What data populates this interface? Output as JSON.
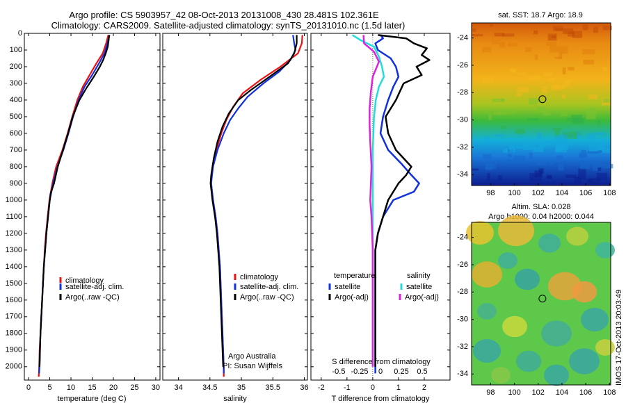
{
  "title_line1": "Argo profile: CS 5903957_42 08-Oct-2013 20131008_430 28.481S 102.361E",
  "title_line2": "Climatology: CARS2009. Satellite-adjusted climatology: synTS_20131010.nc (1.5d later)",
  "stamp": "IMOS 17-Oct-2013 20:03:49",
  "credit_line1": "Argo Australia",
  "credit_line2": "PI: Susan Wijffels",
  "colors": {
    "climatology": "#ee1111",
    "satellite": "#1030dd",
    "argo": "#000000",
    "sat_salinity": "#22dddd",
    "argo_salinity": "#dd22dd"
  },
  "chart_data": [
    {
      "type": "line",
      "id": "temperature",
      "xlabel": "temperature (deg C)",
      "ylabel": "",
      "xlim": [
        -1,
        31
      ],
      "ylim": [
        2080,
        0
      ],
      "xticks": [
        0,
        5,
        10,
        15,
        20,
        25,
        30
      ],
      "yticks": [
        0,
        100,
        200,
        300,
        400,
        500,
        600,
        700,
        800,
        900,
        1000,
        1100,
        1200,
        1300,
        1400,
        1500,
        1600,
        1700,
        1800,
        1900,
        2000
      ],
      "legend": [
        "climatology",
        "satellite-adj. clim.",
        "Argo(..raw -QC)"
      ],
      "series": [
        {
          "name": "climatology",
          "color": "#ee1111",
          "points": [
            [
              18.8,
              10
            ],
            [
              18.3,
              60
            ],
            [
              17.5,
              120
            ],
            [
              16.0,
              180
            ],
            [
              14.4,
              250
            ],
            [
              12.8,
              320
            ],
            [
              11.5,
              400
            ],
            [
              10.3,
              500
            ],
            [
              9.2,
              600
            ],
            [
              8.0,
              700
            ],
            [
              6.5,
              800
            ],
            [
              5.6,
              900
            ],
            [
              4.9,
              1000
            ],
            [
              4.5,
              1100
            ],
            [
              4.1,
              1200
            ],
            [
              3.8,
              1300
            ],
            [
              3.6,
              1400
            ],
            [
              3.4,
              1500
            ],
            [
              3.2,
              1600
            ],
            [
              3.0,
              1700
            ],
            [
              2.8,
              1800
            ],
            [
              2.6,
              1900
            ],
            [
              2.5,
              2000
            ],
            [
              2.4,
              2060
            ]
          ]
        },
        {
          "name": "satellite-adj. clim.",
          "color": "#1030dd",
          "points": [
            [
              19.1,
              10
            ],
            [
              18.6,
              60
            ],
            [
              17.9,
              120
            ],
            [
              16.6,
              180
            ],
            [
              15.0,
              250
            ],
            [
              13.2,
              320
            ],
            [
              11.8,
              400
            ],
            [
              10.5,
              500
            ],
            [
              9.4,
              600
            ],
            [
              8.2,
              700
            ],
            [
              6.8,
              800
            ],
            [
              5.8,
              900
            ],
            [
              5.0,
              1000
            ],
            [
              4.6,
              1100
            ],
            [
              4.2,
              1200
            ],
            [
              3.9,
              1300
            ],
            [
              3.6,
              1400
            ],
            [
              3.4,
              1500
            ],
            [
              3.2,
              1600
            ],
            [
              3.0,
              1700
            ],
            [
              2.8,
              1800
            ],
            [
              2.7,
              1900
            ],
            [
              2.6,
              2000
            ],
            [
              2.5,
              2040
            ]
          ]
        },
        {
          "name": "Argo(..raw -QC)",
          "color": "#000000",
          "points": [
            [
              19.0,
              10
            ],
            [
              18.9,
              40
            ],
            [
              18.7,
              80
            ],
            [
              18.2,
              120
            ],
            [
              17.6,
              160
            ],
            [
              16.8,
              200
            ],
            [
              15.4,
              260
            ],
            [
              13.6,
              330
            ],
            [
              12.0,
              400
            ],
            [
              10.4,
              500
            ],
            [
              9.3,
              600
            ],
            [
              8.1,
              700
            ],
            [
              6.9,
              800
            ],
            [
              6.0,
              900
            ],
            [
              5.2,
              960
            ],
            [
              5.0,
              1000
            ],
            [
              4.6,
              1100
            ],
            [
              4.2,
              1200
            ],
            [
              3.9,
              1300
            ],
            [
              3.6,
              1400
            ],
            [
              3.4,
              1500
            ],
            [
              3.2,
              1600
            ],
            [
              3.0,
              1700
            ],
            [
              2.8,
              1800
            ],
            [
              2.7,
              1900
            ],
            [
              2.6,
              2000
            ]
          ]
        }
      ]
    },
    {
      "type": "line",
      "id": "salinity",
      "xlabel": "salinity",
      "xlim": [
        33.75,
        36.05
      ],
      "ylim": [
        2080,
        0
      ],
      "xticks": [
        34,
        34.5,
        35,
        35.5,
        36
      ],
      "legend": [
        "climatology",
        "satellite-adj. clim.",
        "Argo(..raw -QC)"
      ],
      "series": [
        {
          "name": "climatology",
          "color": "#ee1111",
          "points": [
            [
              35.97,
              10
            ],
            [
              35.96,
              60
            ],
            [
              35.9,
              120
            ],
            [
              35.62,
              200
            ],
            [
              35.3,
              280
            ],
            [
              35.02,
              360
            ],
            [
              34.87,
              440
            ],
            [
              34.76,
              520
            ],
            [
              34.68,
              600
            ],
            [
              34.6,
              700
            ],
            [
              34.54,
              800
            ],
            [
              34.52,
              900
            ],
            [
              34.55,
              1000
            ],
            [
              34.59,
              1100
            ],
            [
              34.62,
              1200
            ],
            [
              34.64,
              1300
            ],
            [
              34.66,
              1400
            ],
            [
              34.67,
              1500
            ],
            [
              34.68,
              1600
            ],
            [
              34.69,
              1700
            ],
            [
              34.7,
              1800
            ],
            [
              34.71,
              1900
            ],
            [
              34.72,
              2000
            ],
            [
              34.72,
              2060
            ]
          ]
        },
        {
          "name": "satellite-adj. clim.",
          "color": "#1030dd",
          "points": [
            [
              35.82,
              10
            ],
            [
              35.84,
              60
            ],
            [
              35.86,
              100
            ],
            [
              35.78,
              160
            ],
            [
              35.6,
              230
            ],
            [
              35.35,
              300
            ],
            [
              35.1,
              380
            ],
            [
              34.95,
              450
            ],
            [
              34.82,
              520
            ],
            [
              34.72,
              600
            ],
            [
              34.62,
              700
            ],
            [
              34.55,
              800
            ],
            [
              34.52,
              900
            ],
            [
              34.55,
              1000
            ],
            [
              34.59,
              1100
            ],
            [
              34.62,
              1200
            ],
            [
              34.64,
              1300
            ],
            [
              34.66,
              1400
            ],
            [
              34.67,
              1500
            ],
            [
              34.68,
              1600
            ],
            [
              34.69,
              1700
            ],
            [
              34.7,
              1800
            ],
            [
              34.71,
              1900
            ],
            [
              34.72,
              2000
            ],
            [
              34.72,
              2040
            ]
          ]
        },
        {
          "name": "Argo(..raw -QC)",
          "color": "#000000",
          "points": [
            [
              35.88,
              10
            ],
            [
              35.88,
              60
            ],
            [
              35.84,
              120
            ],
            [
              35.74,
              180
            ],
            [
              35.45,
              260
            ],
            [
              35.15,
              340
            ],
            [
              34.95,
              400
            ],
            [
              34.8,
              480
            ],
            [
              34.7,
              560
            ],
            [
              34.62,
              650
            ],
            [
              34.56,
              750
            ],
            [
              34.52,
              850
            ],
            [
              34.51,
              900
            ],
            [
              34.54,
              1000
            ],
            [
              34.58,
              1100
            ],
            [
              34.61,
              1200
            ],
            [
              34.63,
              1300
            ],
            [
              34.65,
              1400
            ],
            [
              34.66,
              1500
            ],
            [
              34.67,
              1600
            ],
            [
              34.68,
              1700
            ],
            [
              34.69,
              1800
            ],
            [
              34.7,
              1900
            ],
            [
              34.71,
              2000
            ]
          ]
        }
      ]
    },
    {
      "type": "line",
      "id": "difference",
      "xlabel": "T difference from climatology",
      "xlabel2": "S difference from climatology",
      "xlim": [
        -2.4,
        3.0
      ],
      "ylim": [
        2080,
        0
      ],
      "xticks": [
        -2,
        -1,
        0,
        1,
        2
      ],
      "xticks2_values": [
        -0.5,
        -0.25,
        0,
        0.25,
        0.5
      ],
      "xticks2_labels": [
        "-0.5",
        "-0.25",
        "0",
        "0.25",
        "0.5"
      ],
      "legend_groups": [
        "temperature",
        "salinity"
      ],
      "legend": [
        "satellite",
        "Argo(-adj)",
        "satellite",
        "Argo(-adj)"
      ],
      "series": [
        {
          "name": "temperature satellite",
          "color": "#1030dd",
          "points": [
            [
              0.3,
              10
            ],
            [
              0.4,
              30
            ],
            [
              0.1,
              60
            ],
            [
              0.2,
              100
            ],
            [
              0.7,
              150
            ],
            [
              0.9,
              200
            ],
            [
              1.0,
              260
            ],
            [
              0.8,
              320
            ],
            [
              0.6,
              400
            ],
            [
              0.4,
              500
            ],
            [
              0.3,
              600
            ],
            [
              0.6,
              700
            ],
            [
              1.1,
              780
            ],
            [
              1.5,
              850
            ],
            [
              1.8,
              900
            ],
            [
              1.6,
              950
            ],
            [
              0.8,
              1000
            ],
            [
              0.4,
              1100
            ],
            [
              0.2,
              1200
            ],
            [
              0.1,
              1300
            ],
            [
              0.1,
              1500
            ],
            [
              0.1,
              2000
            ],
            [
              0.1,
              2040
            ]
          ]
        },
        {
          "name": "temperature Argo(-adj)",
          "color": "#000000",
          "points": [
            [
              0.2,
              10
            ],
            [
              1.3,
              30
            ],
            [
              1.6,
              60
            ],
            [
              2.1,
              90
            ],
            [
              1.9,
              130
            ],
            [
              2.2,
              160
            ],
            [
              1.7,
              200
            ],
            [
              1.9,
              250
            ],
            [
              1.2,
              300
            ],
            [
              0.9,
              400
            ],
            [
              0.5,
              500
            ],
            [
              0.6,
              600
            ],
            [
              0.9,
              700
            ],
            [
              1.5,
              800
            ],
            [
              1.3,
              850
            ],
            [
              1.0,
              900
            ],
            [
              0.8,
              950
            ],
            [
              0.6,
              1000
            ],
            [
              0.4,
              1100
            ],
            [
              0.2,
              1200
            ],
            [
              0.1,
              1300
            ],
            [
              0.1,
              1500
            ],
            [
              0.1,
              2000
            ]
          ]
        },
        {
          "name": "salinity satellite",
          "color": "#22dddd",
          "points": [
            [
              -0.33,
              10
            ],
            [
              -0.2,
              40
            ],
            [
              0.02,
              80
            ],
            [
              0.1,
              140
            ],
            [
              0.15,
              200
            ],
            [
              0.18,
              260
            ],
            [
              0.1,
              320
            ],
            [
              0.05,
              400
            ],
            [
              0.02,
              500
            ],
            [
              0.0,
              700
            ],
            [
              0.0,
              1000
            ],
            [
              0.0,
              1500
            ],
            [
              0.0,
              2000
            ]
          ]
        },
        {
          "name": "salinity Argo(-adj)",
          "color": "#dd22dd",
          "points": [
            [
              -0.15,
              10
            ],
            [
              -0.14,
              60
            ],
            [
              0.02,
              110
            ],
            [
              0.1,
              170
            ],
            [
              0.0,
              260
            ],
            [
              -0.03,
              350
            ],
            [
              -0.05,
              450
            ],
            [
              -0.05,
              550
            ],
            [
              -0.04,
              650
            ],
            [
              -0.02,
              800
            ],
            [
              -0.03,
              900
            ],
            [
              -0.04,
              1000
            ],
            [
              -0.02,
              1100
            ],
            [
              -0.01,
              1200
            ],
            [
              0.0,
              1300
            ],
            [
              0.0,
              1500
            ],
            [
              0.0,
              2000
            ]
          ]
        }
      ]
    }
  ],
  "maps": [
    {
      "id": "sst",
      "title": "sat. SST: 18.7  Argo: 18.9",
      "xticks": [
        98,
        100,
        102,
        104,
        106,
        108
      ],
      "yticks": [
        -24,
        -26,
        -28,
        -30,
        -32,
        -34
      ],
      "xlim": [
        96.4,
        108.1
      ],
      "ylim": [
        -34.8,
        -22.9
      ],
      "marker": [
        102.36,
        -28.48
      ]
    },
    {
      "id": "sla",
      "title_line1": "Altim. SLA: 0.028",
      "title_line2": "Argo h1000: 0.04  h2000: 0.044",
      "xticks": [
        98,
        100,
        102,
        104,
        106,
        108
      ],
      "yticks": [
        -24,
        -26,
        -28,
        -30,
        -32,
        -34
      ],
      "xlim": [
        96.4,
        108.1
      ],
      "ylim": [
        -34.8,
        -22.9
      ],
      "marker": [
        102.36,
        -28.48
      ]
    }
  ]
}
